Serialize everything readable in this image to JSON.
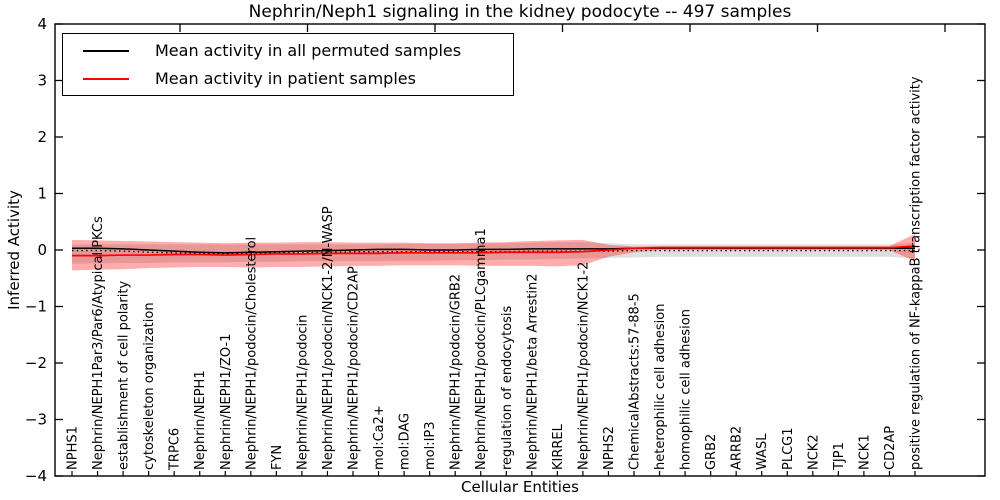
{
  "chart_data": {
    "type": "line",
    "title": "Nephrin/Neph1 signaling in the kidney podocyte -- 497 samples",
    "xlabel": "Cellular Entities",
    "ylabel": "Inferred Activity",
    "ylim": [
      -4,
      4
    ],
    "yticks": [
      4,
      3,
      2,
      1,
      0,
      -1,
      -2,
      -3,
      -4
    ],
    "grid": false,
    "legend_position": "upper left",
    "legend": [
      {
        "label": "Mean activity in all permuted samples",
        "color": "#000000"
      },
      {
        "label": "Mean activity in patient samples",
        "color": "#ff0000"
      }
    ],
    "categories": [
      "NPHS1",
      "Nephrin/NEPH1Par3/Par6/Atypical PKCs",
      "establishment of cell polarity",
      "cytoskeleton organization",
      "TRPC6",
      "Nephrin/NEPH1",
      "Nephrin/NEPH1/ZO-1",
      "Nephrin/NEPH1/podocin/Cholesterol",
      "FYN",
      "Nephrin/NEPH1/podocin",
      "Nephrin/NEPH1/podocin/NCK1-2/N-WASP",
      "Nephrin/NEPH1/podocin/CD2AP",
      "mol:Ca2+",
      "mol:DAG",
      "mol:IP3",
      "Nephrin/NEPH1/podocin/GRB2",
      "Nephrin/NEPH1/podocin/PLCgamma1",
      "regulation of endocytosis",
      "Nephrin/NEPH1/beta Arrestin2",
      "KIRREL",
      "Nephrin/NEPH1/podocin/NCK1-2",
      "NPHS2",
      "ChemicalAbstracts:57-88-5",
      "heterophilic cell adhesion",
      "homophilic cell adhesion",
      "GRB2",
      "ARRB2",
      "WASL",
      "PLCG1",
      "NCK2",
      "TJP1",
      "NCK1",
      "CD2AP",
      "positive regulation of NF-kappaB transcription factor activity"
    ],
    "series": [
      {
        "name": "Mean activity in all permuted samples",
        "style": "solid",
        "color": "#000000",
        "values": [
          0.03,
          0.03,
          0.02,
          0.0,
          -0.02,
          -0.04,
          -0.05,
          -0.04,
          -0.03,
          -0.02,
          -0.01,
          0.0,
          0.01,
          0.01,
          0.0,
          0.0,
          0.01,
          0.01,
          0.02,
          0.02,
          0.02,
          0.02,
          0.03,
          0.03,
          0.03,
          0.03,
          0.03,
          0.03,
          0.03,
          0.03,
          0.03,
          0.03,
          0.03,
          0.03
        ]
      },
      {
        "name": "permuted samples dotted reference",
        "style": "dotted",
        "color": "#000000",
        "values": [
          -0.01,
          -0.01,
          -0.02,
          -0.04,
          -0.05,
          -0.06,
          -0.07,
          -0.06,
          -0.05,
          -0.05,
          -0.04,
          -0.03,
          -0.03,
          -0.03,
          -0.03,
          -0.03,
          -0.03,
          -0.03,
          -0.02,
          -0.02,
          -0.02,
          -0.02,
          -0.01,
          -0.01,
          -0.01,
          -0.01,
          -0.01,
          -0.01,
          -0.01,
          -0.01,
          -0.01,
          -0.01,
          -0.01,
          -0.01
        ]
      },
      {
        "name": "Mean activity in patient samples",
        "style": "solid",
        "color": "#ff0000",
        "values": [
          -0.1,
          -0.1,
          -0.09,
          -0.09,
          -0.08,
          -0.08,
          -0.09,
          -0.08,
          -0.07,
          -0.07,
          -0.06,
          -0.06,
          -0.06,
          -0.05,
          -0.05,
          -0.05,
          -0.05,
          -0.04,
          -0.04,
          -0.04,
          -0.03,
          0.0,
          0.03,
          0.04,
          0.04,
          0.04,
          0.04,
          0.04,
          0.04,
          0.04,
          0.04,
          0.04,
          0.04,
          0.07
        ]
      }
    ],
    "bands": [
      {
        "name": "permuted samples spread",
        "color": "rgba(0,0,0,0.13)",
        "upper": [
          0.1,
          0.1,
          0.1,
          0.1,
          0.1,
          0.1,
          0.1,
          0.1,
          0.1,
          0.1,
          0.1,
          0.1,
          0.1,
          0.11,
          0.11,
          0.11,
          0.12,
          0.12,
          0.13,
          0.14,
          0.14,
          0.12,
          0.1,
          0.1,
          0.1,
          0.1,
          0.1,
          0.1,
          0.1,
          0.1,
          0.1,
          0.1,
          0.1,
          0.13
        ],
        "lower": [
          -0.24,
          -0.24,
          -0.23,
          -0.23,
          -0.22,
          -0.22,
          -0.22,
          -0.21,
          -0.21,
          -0.2,
          -0.2,
          -0.2,
          -0.2,
          -0.19,
          -0.19,
          -0.18,
          -0.18,
          -0.17,
          -0.17,
          -0.16,
          -0.15,
          -0.14,
          -0.13,
          -0.12,
          -0.12,
          -0.12,
          -0.12,
          -0.12,
          -0.12,
          -0.12,
          -0.12,
          -0.12,
          -0.12,
          -0.15
        ]
      },
      {
        "name": "patient samples spread",
        "color": "rgba(255,0,0,0.32)",
        "upper": [
          0.18,
          0.17,
          0.16,
          0.15,
          0.14,
          0.13,
          0.12,
          0.13,
          0.13,
          0.14,
          0.14,
          0.13,
          0.13,
          0.13,
          0.12,
          0.12,
          0.13,
          0.14,
          0.16,
          0.17,
          0.18,
          0.09,
          0.06,
          0.07,
          0.07,
          0.07,
          0.07,
          0.07,
          0.07,
          0.07,
          0.07,
          0.07,
          0.07,
          0.28
        ],
        "lower": [
          -0.36,
          -0.35,
          -0.34,
          -0.32,
          -0.31,
          -0.3,
          -0.3,
          -0.31,
          -0.3,
          -0.3,
          -0.29,
          -0.28,
          -0.28,
          -0.27,
          -0.27,
          -0.27,
          -0.28,
          -0.28,
          -0.28,
          -0.29,
          -0.27,
          -0.12,
          -0.04,
          0.0,
          0.0,
          0.0,
          0.0,
          0.0,
          0.0,
          0.0,
          0.0,
          0.0,
          0.0,
          -0.2
        ]
      }
    ]
  }
}
